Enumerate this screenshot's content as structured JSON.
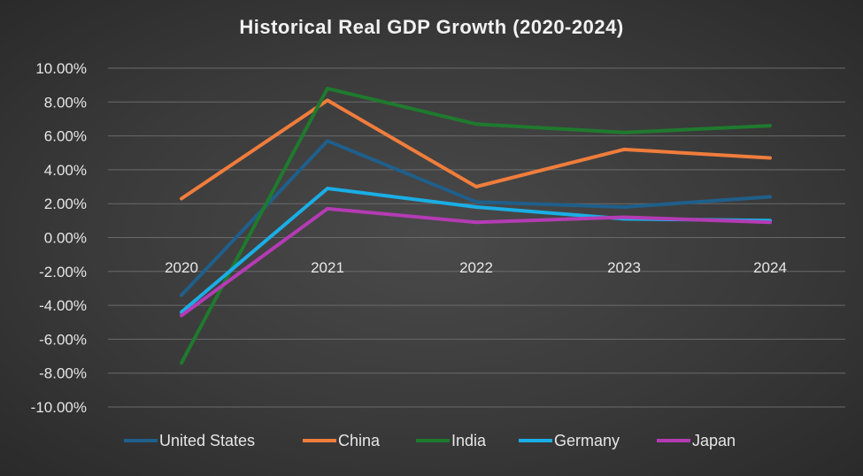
{
  "chart_data": {
    "type": "line",
    "title": "Historical Real GDP Growth (2020-2024)",
    "xlabel": "",
    "ylabel": "",
    "categories": [
      "2020",
      "2021",
      "2022",
      "2023",
      "2024"
    ],
    "ylim": [
      -10,
      10
    ],
    "ytick_step": 2,
    "ytick_labels": [
      "10.00%",
      "8.00%",
      "6.00%",
      "4.00%",
      "2.00%",
      "0.00%",
      "-2.00%",
      "-4.00%",
      "-6.00%",
      "-8.00%",
      "-10.00%"
    ],
    "grid": true,
    "legend_position": "bottom",
    "series": [
      {
        "name": "United States",
        "color": "#1f5f8b",
        "values": [
          -3.4,
          5.7,
          2.1,
          1.8,
          2.4
        ]
      },
      {
        "name": "China",
        "color": "#f07d3c",
        "values": [
          2.3,
          8.1,
          3.0,
          5.2,
          4.7
        ]
      },
      {
        "name": "India",
        "color": "#1f7a2e",
        "values": [
          -7.4,
          8.8,
          6.7,
          6.2,
          6.6
        ]
      },
      {
        "name": "Germany",
        "color": "#1aaee6",
        "values": [
          -4.4,
          2.9,
          1.8,
          1.1,
          1.0
        ]
      },
      {
        "name": "Japan",
        "color": "#b43bb4",
        "values": [
          -4.6,
          1.7,
          0.9,
          1.2,
          0.9
        ]
      }
    ]
  }
}
